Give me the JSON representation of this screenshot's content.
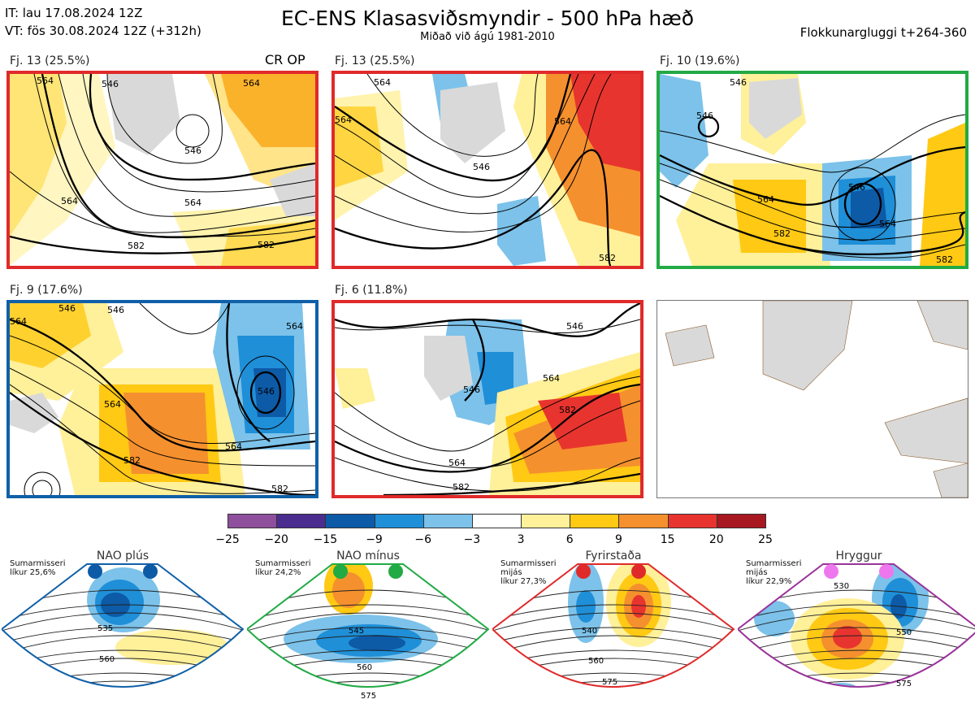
{
  "header": {
    "it_line": "IT: lau 17.08.2024 12Z",
    "vt_line": "VT: fös 30.08.2024 12Z  (+312h)",
    "title": "EC-ENS Klasasviðsmyndir - 500 hPa hæð",
    "subtitle": "Miðað við ágú 1981-2010",
    "window": "Flokkunargluggi t+264-360"
  },
  "colors": {
    "red": "#e02a2a",
    "green": "#22aa44",
    "blue": "#1060a8",
    "purple": "#993399",
    "land": "#d9d9d9",
    "coast": "#8b5a2b"
  },
  "panels": [
    {
      "label": "Fj. 13 (25.5%)",
      "extra": "CR OP",
      "frame": "#e02a2a",
      "contour_labels": [
        "564",
        "546",
        "546",
        "564",
        "564",
        "582",
        "564",
        "582"
      ]
    },
    {
      "label": "Fj. 13 (25.5%)",
      "frame": "#e02a2a",
      "contour_labels": [
        "564",
        "546",
        "564",
        "564",
        "582"
      ]
    },
    {
      "label": "Fj. 10 (19.6%)",
      "frame": "#22aa44",
      "contour_labels": [
        "546",
        "546",
        "564",
        "582",
        "546",
        "564",
        "582"
      ]
    },
    {
      "label": "Fj. 9 (17.6%)",
      "frame": "#1060a8",
      "contour_labels": [
        "546",
        "564",
        "546",
        "564",
        "564",
        "582",
        "546",
        "564",
        "582"
      ]
    },
    {
      "label": "Fj. 6 (11.8%)",
      "frame": "#e02a2a",
      "contour_labels": [
        "546",
        "546",
        "564",
        "582",
        "564",
        "582"
      ]
    }
  ],
  "chart_data": {
    "type": "heatmap",
    "title": "EC-ENS Klasasviðsmyndir - 500 hPa hæð",
    "colorbar": {
      "ticks": [
        "−25",
        "−20",
        "−15",
        "−9",
        "−6",
        "−3",
        "3",
        "6",
        "9",
        "15",
        "20",
        "25"
      ],
      "colors": [
        "#8e4f9c",
        "#4b2c8f",
        "#0d5aa7",
        "#1f8fd8",
        "#7cc2ea",
        "#ffffff",
        "#fff09a",
        "#ffc914",
        "#f5902e",
        "#e8342e",
        "#a81820"
      ]
    },
    "clusters": [
      {
        "name": "Fj. 13",
        "percent": 25.5
      },
      {
        "name": "Fj. 13",
        "percent": 25.5
      },
      {
        "name": "Fj. 10",
        "percent": 19.6
      },
      {
        "name": "Fj. 9",
        "percent": 17.6
      },
      {
        "name": "Fj. 6",
        "percent": 11.8
      }
    ]
  },
  "regimes": [
    {
      "name": "NAO plús",
      "note1": "Sumarmisseri",
      "note2": "",
      "likur": "líkur 25,6%",
      "color": "#1060a8",
      "dot": "#0d5aa7",
      "labels": [
        "535",
        "560"
      ]
    },
    {
      "name": "NAO mínus",
      "note1": "Sumarmisseri",
      "note2": "",
      "likur": "líkur 24,2%",
      "color": "#22aa44",
      "dot": "#22aa44",
      "labels": [
        "545",
        "560",
        "575"
      ]
    },
    {
      "name": "Fyrirstaða",
      "note1": "Sumarmisseri",
      "note2": "mijás",
      "likur": "líkur 27,3%",
      "color": "#e02a2a",
      "dot": "#e02a2a",
      "labels": [
        "540",
        "560",
        "575"
      ]
    },
    {
      "name": "Hryggur",
      "note1": "Sumarmisseri",
      "note2": "mijás",
      "likur": "líkur 22,9%",
      "color": "#993399",
      "dot": "#ee77ee",
      "labels": [
        "530",
        "550",
        "575"
      ]
    }
  ]
}
